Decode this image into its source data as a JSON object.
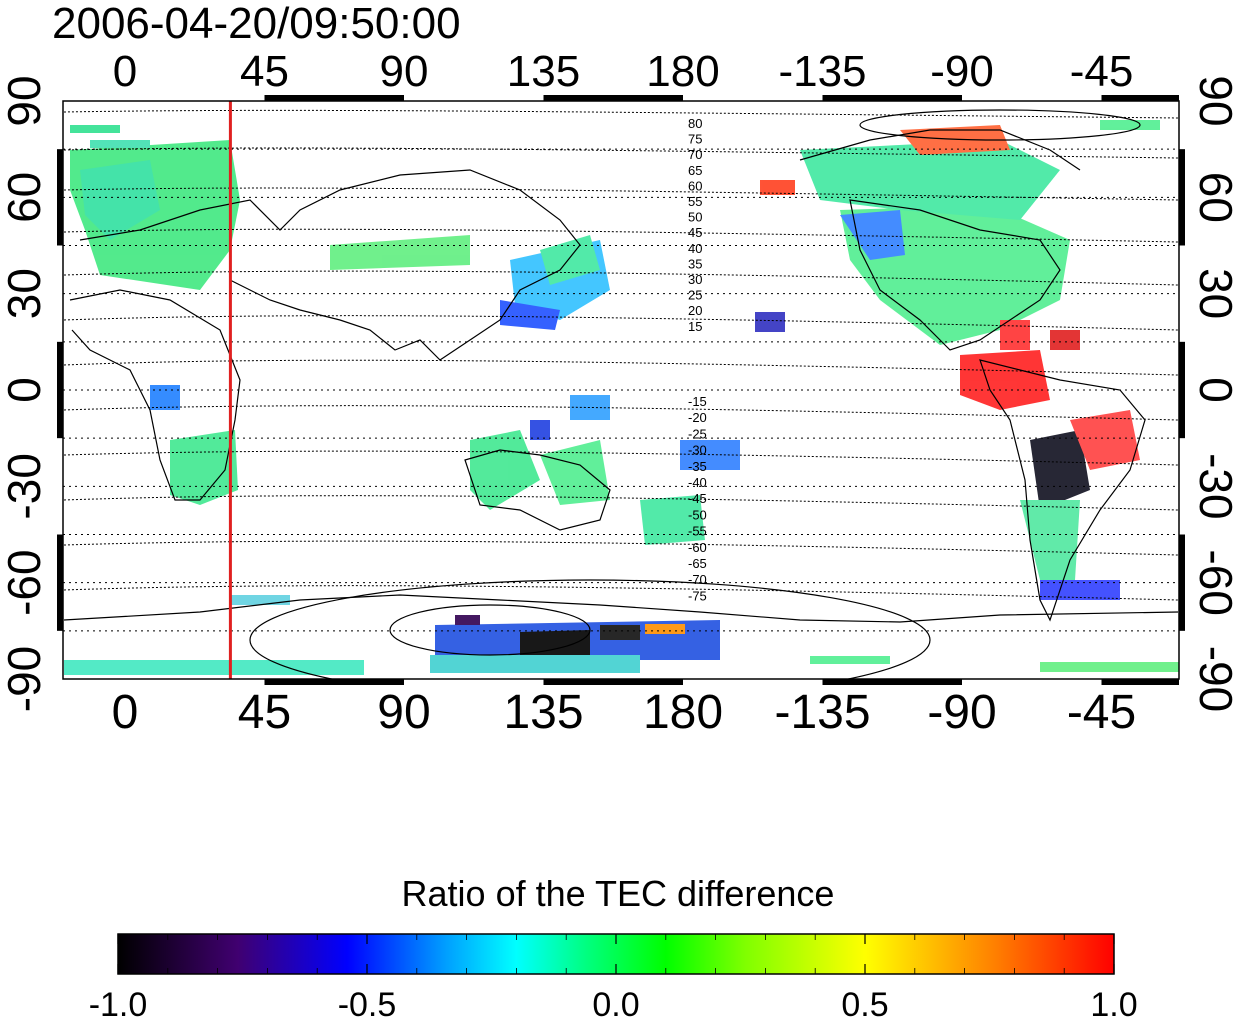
{
  "map": {
    "timestamp": "2006-04-20/09:50:00",
    "lon_ticks_top": [
      "0",
      "45",
      "90",
      "135",
      "180",
      "-135",
      "-90",
      "-45"
    ],
    "lon_ticks_bottom": [
      "0",
      "45",
      "90",
      "135",
      "180",
      "-135",
      "-90",
      "-45"
    ],
    "lat_ticks_left": [
      "90",
      "60",
      "30",
      "0",
      "-30",
      "-60",
      "-90"
    ],
    "lat_ticks_right": [
      "90",
      "60",
      "30",
      "0",
      "-30",
      "-60",
      "-90"
    ],
    "lon_values": [
      0,
      45,
      90,
      135,
      180,
      225,
      270,
      315
    ],
    "lat_values": [
      90,
      60,
      30,
      0,
      -30,
      -60,
      -90
    ],
    "lon_range": [
      -20,
      340
    ],
    "lat_range": [
      -90,
      90
    ],
    "reference_meridian_lon": 34,
    "reference_meridian_color": "#e02020",
    "contour_labels_north": [
      "80",
      "75",
      "70",
      "65",
      "60",
      "55",
      "50",
      "45",
      "40",
      "35",
      "30",
      "25",
      "20",
      "15"
    ],
    "contour_labels_south": [
      "-15",
      "-20",
      "-25",
      "-30",
      "-35",
      "-40",
      "-45",
      "-50",
      "-55",
      "-60",
      "-65",
      "-70",
      "-75"
    ]
  },
  "colorbar": {
    "title": "Ratio of the TEC difference",
    "tick_labels": [
      "-1.0",
      "-0.5",
      "0.0",
      "0.5",
      "1.0"
    ],
    "tick_values": [
      -1.0,
      -0.5,
      0.0,
      0.5,
      1.0
    ],
    "range": [
      -1.0,
      1.0
    ],
    "colors": [
      "#000000",
      "#400070",
      "#0000ff",
      "#00a0ff",
      "#00ffff",
      "#00ff80",
      "#00ff00",
      "#80ff00",
      "#ffff00",
      "#ff8000",
      "#ff0000"
    ]
  }
}
